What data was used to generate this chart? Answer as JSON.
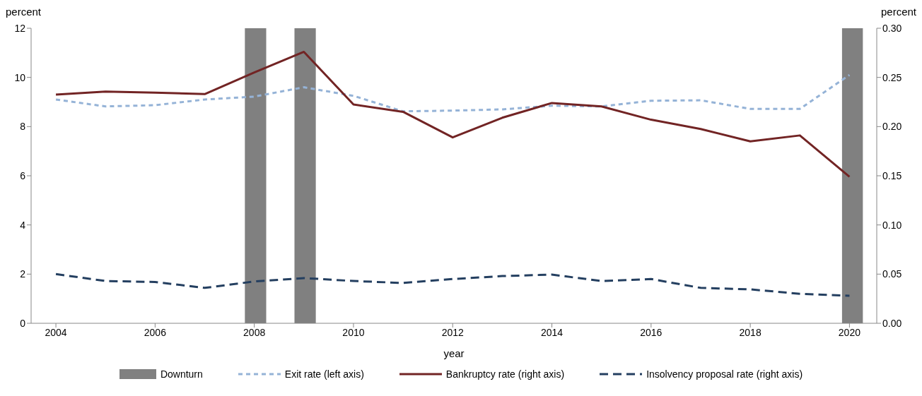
{
  "chart_data": {
    "type": "line",
    "xlabel": "year",
    "ylabel": "percent",
    "y2label": "percent",
    "x": [
      2004,
      2005,
      2006,
      2007,
      2008,
      2009,
      2010,
      2011,
      2012,
      2013,
      2014,
      2015,
      2016,
      2017,
      2018,
      2019,
      2020
    ],
    "xlim": [
      2003.5,
      2020.55
    ],
    "xticks": [
      2004,
      2006,
      2008,
      2010,
      2012,
      2014,
      2016,
      2018,
      2020
    ],
    "ylim": [
      0,
      12
    ],
    "yticks": [
      0,
      2,
      4,
      6,
      8,
      10,
      12
    ],
    "y2lim": [
      0,
      0.3
    ],
    "y2ticks": [
      {
        "value": 0,
        "label": "0.00"
      },
      {
        "value": 0.05,
        "label": "0.05"
      },
      {
        "value": 0.1,
        "label": "0.10"
      },
      {
        "value": 0.15,
        "label": "0.15"
      },
      {
        "value": 0.2,
        "label": "0.20"
      },
      {
        "value": 0.25,
        "label": "0.25"
      },
      {
        "value": 0.3,
        "label": "0.30"
      }
    ],
    "series": [
      {
        "name": "Exit rate (left axis)",
        "color": "#95b3d7",
        "line_style": "dashed",
        "values": [
          9.1,
          8.82,
          8.87,
          9.1,
          9.22,
          9.6,
          9.25,
          8.62,
          8.65,
          8.7,
          8.85,
          8.82,
          9.05,
          9.07,
          8.72,
          8.72,
          10.1
        ]
      },
      {
        "name": "Bankruptcy rate (right axis)",
        "color": "#722424",
        "line_style": "solid",
        "axis": "y2",
        "values": [
          0.2325,
          0.2355,
          0.2345,
          0.233,
          0.255,
          0.276,
          0.2225,
          0.215,
          0.189,
          0.209,
          0.224,
          0.2205,
          0.207,
          0.1975,
          0.185,
          0.191,
          0.149
        ]
      },
      {
        "name": "Insolvency proposal rate (right axis)",
        "color": "#243f60",
        "line_style": "dashed",
        "axis": "y2",
        "values": [
          0.05,
          0.043,
          0.042,
          0.036,
          0.0425,
          0.046,
          0.043,
          0.041,
          0.045,
          0.048,
          0.0495,
          0.043,
          0.045,
          0.036,
          0.0345,
          0.03,
          0.028
        ]
      }
    ],
    "bands": [
      {
        "axis": "x",
        "from": 2007.81,
        "to": 2008.24,
        "label": "Downturn",
        "color": "#808080"
      },
      {
        "axis": "x",
        "from": 2008.81,
        "to": 2009.24,
        "color": "#808080"
      },
      {
        "axis": "x",
        "from": 2019.85,
        "to": 2020.27,
        "color": "#808080"
      }
    ],
    "grid": false,
    "legend": "bottom",
    "marker": "none"
  }
}
